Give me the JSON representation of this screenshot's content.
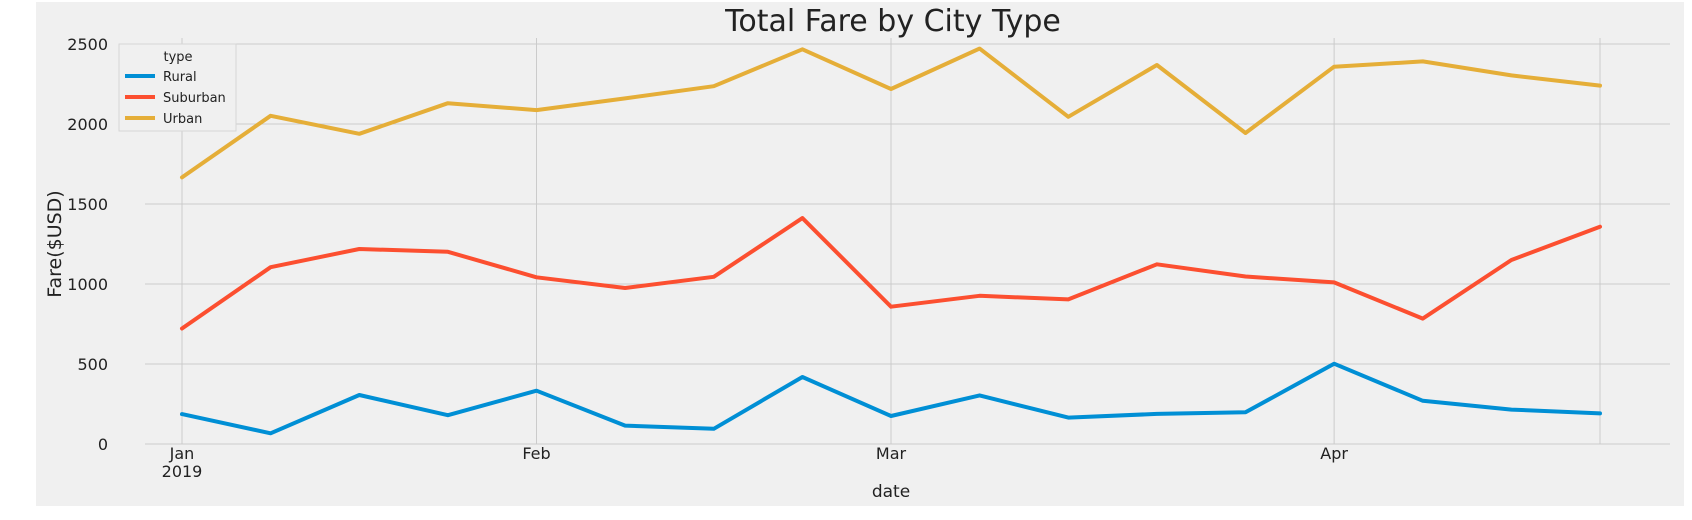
{
  "chart_data": {
    "type": "line",
    "title": "Total Fare by City Type",
    "xlabel": "date",
    "ylabel": "Fare($USD)",
    "ylim": [
      0,
      2500
    ],
    "yticks": [
      0,
      500,
      1000,
      1500,
      2000,
      2500
    ],
    "x_tick_labels": [
      {
        "label": "Jan",
        "sublabel": "2019",
        "date": "2019-01-06"
      },
      {
        "label": "Feb",
        "sublabel": "",
        "date": "2019-02-03"
      },
      {
        "label": "Mar",
        "sublabel": "",
        "date": "2019-03-03"
      },
      {
        "label": "Apr",
        "sublabel": "",
        "date": "2019-04-07"
      }
    ],
    "grid": true,
    "legend": {
      "title": "type",
      "placement": "top-left"
    },
    "x": [
      "2019-01-06",
      "2019-01-13",
      "2019-01-20",
      "2019-01-27",
      "2019-02-03",
      "2019-02-10",
      "2019-02-17",
      "2019-02-24",
      "2019-03-03",
      "2019-03-10",
      "2019-03-17",
      "2019-03-24",
      "2019-03-31",
      "2019-04-07",
      "2019-04-14",
      "2019-04-21",
      "2019-04-28"
    ],
    "series": [
      {
        "name": "Rural",
        "color": "#008fd5",
        "values": [
          187,
          67,
          306,
          180,
          333,
          115,
          95,
          419,
          175,
          304,
          165,
          188,
          198,
          502,
          270,
          215,
          191
        ]
      },
      {
        "name": "Suburban",
        "color": "#fc4f30",
        "values": [
          722,
          1105,
          1219,
          1201,
          1042,
          975,
          1045,
          1412,
          858,
          926,
          904,
          1123,
          1047,
          1010,
          784,
          1150,
          1358
        ]
      },
      {
        "name": "Urban",
        "color": "#e5ae38",
        "values": [
          1666,
          2051,
          1939,
          2130,
          2087,
          2160,
          2236,
          2467,
          2219,
          2471,
          2045,
          2369,
          1944,
          2358,
          2391,
          2304,
          2240
        ]
      }
    ]
  },
  "colors": {
    "plot_background": "#f0f0f0",
    "grid": "#cbcbcb"
  }
}
